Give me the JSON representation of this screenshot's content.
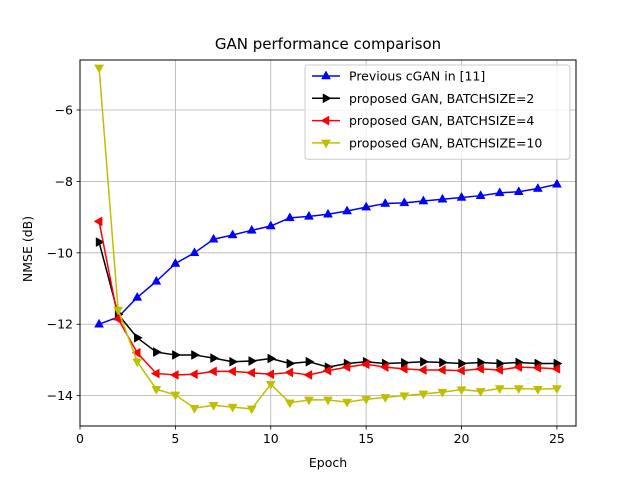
{
  "chart_data": {
    "type": "line",
    "title": "GAN performance comparison",
    "xlabel": "Epoch",
    "ylabel": "NMSE (dB)",
    "xlim": [
      0,
      26
    ],
    "ylim": [
      -14.85,
      -4.6
    ],
    "xticks": [
      0,
      5,
      10,
      15,
      20,
      25
    ],
    "yticks": [
      -14,
      -12,
      -10,
      -8,
      -6
    ],
    "ytick_labels": [
      "−14",
      "−12",
      "−10",
      "−8",
      "−6"
    ],
    "grid": true,
    "legend_position": "top-right",
    "x": [
      1,
      2,
      3,
      4,
      5,
      6,
      7,
      8,
      9,
      10,
      11,
      12,
      13,
      14,
      15,
      16,
      17,
      18,
      19,
      20,
      21,
      22,
      23,
      24,
      25
    ],
    "series": [
      {
        "name": "Previous cGAN in [11]",
        "color": "#0000ff",
        "marker": "triangle-up",
        "values": [
          -12.0,
          -11.8,
          -11.25,
          -10.8,
          -10.3,
          -10.0,
          -9.62,
          -9.5,
          -9.37,
          -9.25,
          -9.02,
          -8.98,
          -8.92,
          -8.83,
          -8.72,
          -8.62,
          -8.6,
          -8.55,
          -8.5,
          -8.45,
          -8.4,
          -8.32,
          -8.29,
          -8.2,
          -8.08
        ]
      },
      {
        "name": "proposed GAN, BATCHSIZE=2",
        "color": "#000000",
        "marker": "triangle-right",
        "values": [
          -9.7,
          -11.72,
          -12.38,
          -12.78,
          -12.86,
          -12.86,
          -12.95,
          -13.05,
          -13.03,
          -12.96,
          -13.1,
          -13.05,
          -13.2,
          -13.1,
          -13.05,
          -13.1,
          -13.08,
          -13.05,
          -13.07,
          -13.1,
          -13.07,
          -13.1,
          -13.07,
          -13.1,
          -13.1
        ]
      },
      {
        "name": "proposed GAN, BATCHSIZE=4",
        "color": "#ff0000",
        "marker": "triangle-left",
        "values": [
          -9.12,
          -11.85,
          -12.8,
          -13.38,
          -13.42,
          -13.4,
          -13.32,
          -13.32,
          -13.36,
          -13.4,
          -13.35,
          -13.42,
          -13.3,
          -13.2,
          -13.12,
          -13.2,
          -13.25,
          -13.28,
          -13.28,
          -13.3,
          -13.25,
          -13.28,
          -13.2,
          -13.22,
          -13.25
        ]
      },
      {
        "name": "proposed GAN, BATCHSIZE=10",
        "color": "#bfbf00",
        "marker": "triangle-down",
        "values": [
          -4.82,
          -11.6,
          -13.05,
          -13.82,
          -13.98,
          -14.35,
          -14.27,
          -14.32,
          -14.37,
          -13.68,
          -14.2,
          -14.12,
          -14.12,
          -14.18,
          -14.1,
          -14.05,
          -14.0,
          -13.95,
          -13.9,
          -13.83,
          -13.88,
          -13.8,
          -13.8,
          -13.82,
          -13.8
        ]
      }
    ]
  }
}
